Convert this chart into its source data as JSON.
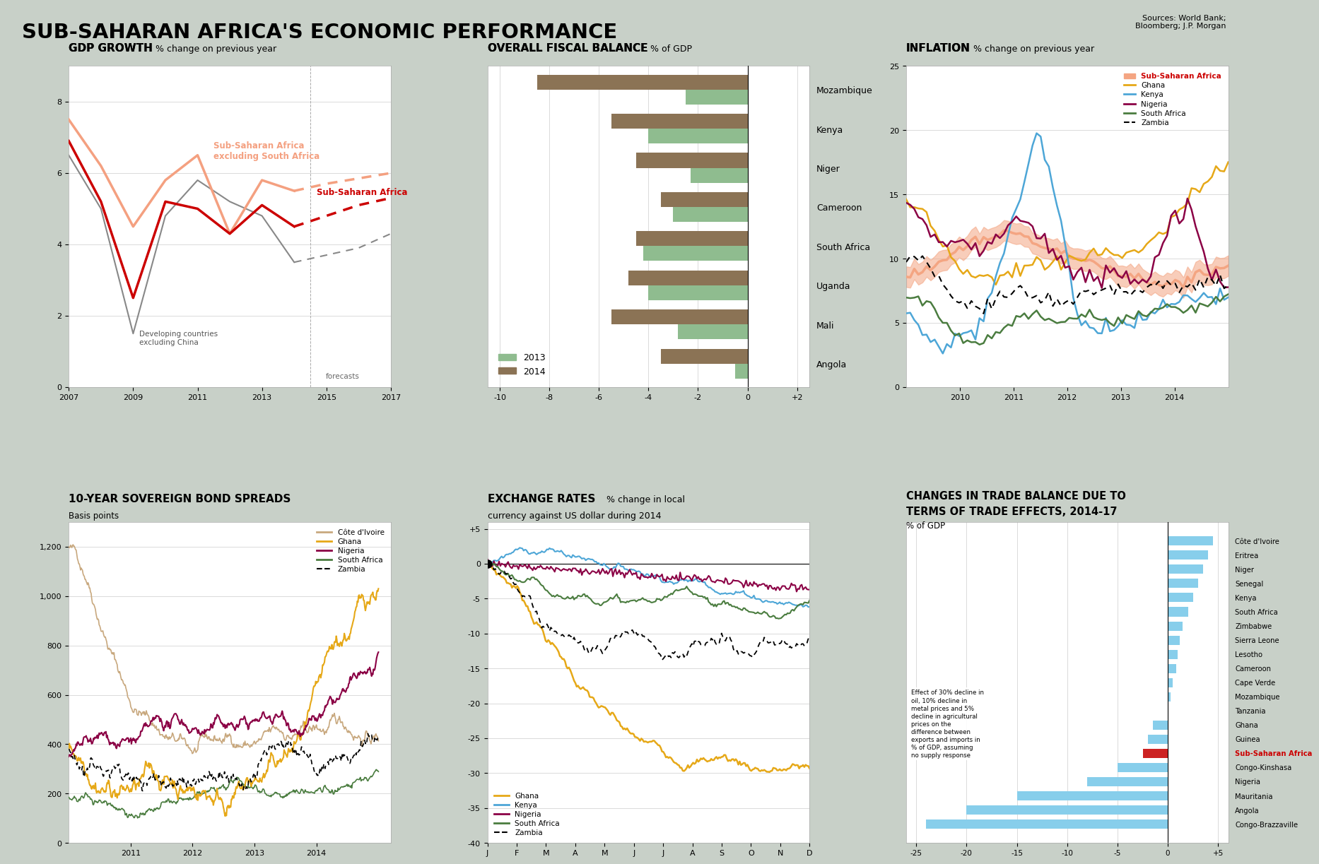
{
  "title": "SUB-SAHARAN AFRICA'S ECONOMIC PERFORMANCE",
  "sources": "Sources: World Bank;\nBloomberg; J.P. Morgan",
  "background_color": "#c8d0c8",
  "panel_background": "#ffffff",
  "gdp": {
    "title_bold": "GDP GROWTH",
    "title_normal": " % change on previous year",
    "years": [
      2007,
      2008,
      2009,
      2010,
      2011,
      2012,
      2013,
      2014
    ],
    "ssa": [
      6.9,
      5.2,
      2.5,
      5.2,
      5.0,
      4.3,
      5.1,
      4.5
    ],
    "ssa_excl": [
      7.5,
      6.2,
      4.5,
      5.8,
      6.5,
      4.3,
      5.8,
      5.5
    ],
    "dev": [
      6.5,
      5.0,
      1.5,
      4.8,
      5.8,
      5.2,
      4.8,
      3.5
    ],
    "f_years": [
      2014,
      2015,
      2016,
      2017
    ],
    "ssa_f": [
      4.5,
      4.8,
      5.1,
      5.3
    ],
    "ssa_excl_f": [
      5.5,
      5.7,
      5.85,
      6.0
    ],
    "dev_f": [
      3.5,
      3.7,
      3.9,
      4.3
    ],
    "ssa_color": "#cc0000",
    "ssa_excl_color": "#f4a080",
    "dev_color": "#888888",
    "ylim": [
      0,
      9
    ],
    "yticks": [
      0,
      2,
      4,
      6,
      8
    ],
    "xticks": [
      2007,
      2009,
      2011,
      2013,
      2015,
      2017
    ]
  },
  "fiscal": {
    "title_bold": "OVERALL FISCAL BALANCE",
    "title_normal": " % of GDP",
    "countries": [
      "Mozambique",
      "Kenya",
      "Niger",
      "Cameroon",
      "South Africa",
      "Uganda",
      "Mali",
      "Angola"
    ],
    "vals_2013": [
      -2.5,
      -4.0,
      -2.3,
      -3.0,
      -4.2,
      -4.0,
      -2.8,
      -0.5
    ],
    "vals_2014": [
      -8.5,
      -5.5,
      -4.5,
      -3.5,
      -4.5,
      -4.8,
      -5.5,
      -3.5
    ],
    "xlim": [
      -10.5,
      2.5
    ],
    "xticks": [
      -10,
      -8,
      -6,
      -4,
      -2,
      0,
      2
    ],
    "xtick_labels": [
      "-10",
      "-8",
      "-6",
      "-4",
      "-2",
      "0",
      "+2"
    ],
    "color_2013": "#8fbc8f",
    "color_2014": "#8b7355"
  },
  "inflation": {
    "title_bold": "INFLATION",
    "title_normal": " % change on previous year",
    "ylim": [
      0,
      25
    ],
    "yticks": [
      0,
      5,
      10,
      15,
      20,
      25
    ],
    "ssa_color": "#f4a582",
    "ghana_color": "#e6a817",
    "kenya_color": "#4da6d7",
    "nigeria_color": "#8b0045",
    "south_africa_color": "#4a7c3f",
    "zambia_color": "#000000"
  },
  "bonds": {
    "title_bold": "10-YEAR SOVEREIGN BOND SPREADS",
    "subtitle": "Basis points",
    "ylim": [
      0,
      1300
    ],
    "ytick_labels": [
      "0",
      "200",
      "400",
      "600",
      "800",
      "1,000",
      "1,200"
    ],
    "cote_color": "#c8a87e",
    "ghana_color": "#e6a817",
    "nigeria_color": "#8b0045",
    "south_africa_color": "#4a7c3f",
    "zambia_color": "#000000"
  },
  "exchange": {
    "title_bold": "EXCHANGE RATES",
    "title_normal": " % change in local\ncurrency against US dollar during 2014",
    "ylim": [
      -40,
      6
    ],
    "ytick_vals": [
      5,
      0,
      -5,
      -10,
      -15,
      -20,
      -25,
      -30,
      -35,
      -40
    ],
    "ytick_labels": [
      "+5",
      "0",
      "-5",
      "-10",
      "-15",
      "-20",
      "-25",
      "-30",
      "-35",
      "-40"
    ],
    "months": [
      "J",
      "F",
      "M",
      "A",
      "M",
      "J",
      "J",
      "A",
      "S",
      "O",
      "N",
      "D"
    ],
    "ghana_color": "#e6a817",
    "kenya_color": "#4da6d7",
    "nigeria_color": "#8b0045",
    "south_africa_color": "#4a7c3f",
    "zambia_color": "#000000"
  },
  "trade": {
    "title_line1": "CHANGES IN TRADE BALANCE DUE TO",
    "title_line2": "TERMS OF TRADE EFFECTS, 2014-17",
    "subtitle": "% of GDP",
    "countries": [
      "Côte d'Ivoire",
      "Eritrea",
      "Niger",
      "Senegal",
      "Kenya",
      "South Africa",
      "Zimbabwe",
      "Sierra Leone",
      "Lesotho",
      "Cameroon",
      "Cape Verde",
      "Mozambique",
      "Tanzania",
      "Ghana",
      "Guinea",
      "Sub-Saharan Africa",
      "Congo-Kinshasa",
      "Nigeria",
      "Mauritania",
      "Angola",
      "Congo-Brazzaville"
    ],
    "values": [
      4.5,
      4.0,
      3.5,
      3.0,
      2.5,
      2.0,
      1.5,
      1.2,
      1.0,
      0.8,
      0.5,
      0.3,
      0.0,
      -1.5,
      -2.0,
      -2.5,
      -5.0,
      -8.0,
      -15.0,
      -20.0,
      -24.0
    ],
    "bar_color": "#87ceeb",
    "ssa_color": "#cc2222",
    "xlim": [
      -26,
      6
    ],
    "xticks": [
      -25,
      -20,
      -15,
      -10,
      -5,
      0,
      5
    ],
    "xtick_labels": [
      "-25",
      "-20",
      "-15",
      "-10",
      "-5",
      "0",
      "+5"
    ],
    "annotation": "Effect of 30% decline in\noil, 10% decline in\nmetal prices and 5%\ndecline in agricultural\nprices on the\ndifference between\nexports and imports in\n% of GDP, assuming\nno supply response"
  }
}
